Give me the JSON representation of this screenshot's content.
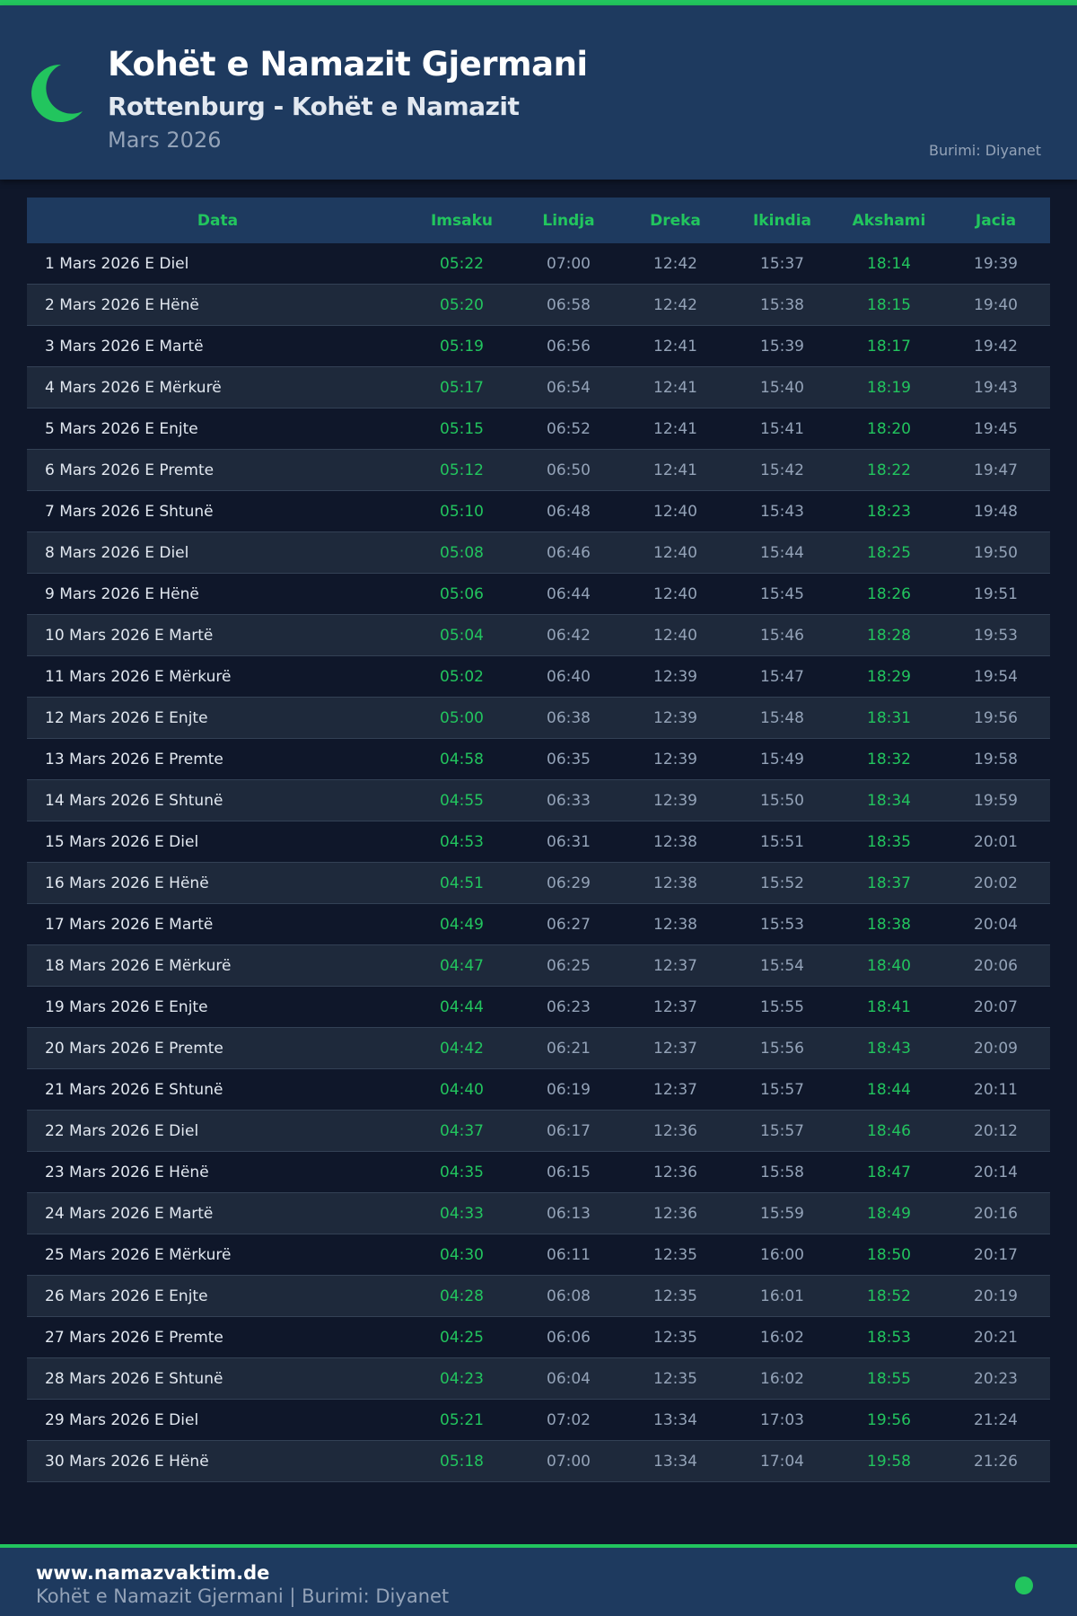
{
  "header": {
    "title": "Kohët e Namazit Gjermani",
    "subtitle": "Rottenburg - Kohët e Namazit",
    "month": "Mars 2026",
    "source": "Burimi: Diyanet",
    "icon": "crescent-moon-icon"
  },
  "colors": {
    "accent": "#22c55e",
    "header_bg": "#1e3a5f",
    "page_bg": "#0f172a",
    "row_alt": "#1e293b"
  },
  "table": {
    "columns": [
      "Data",
      "Imsaku",
      "Lindja",
      "Dreka",
      "Ikindia",
      "Akshami",
      "Jacia"
    ],
    "rows": [
      [
        "1 Mars 2026 E Diel",
        "05:22",
        "07:00",
        "12:42",
        "15:37",
        "18:14",
        "19:39"
      ],
      [
        "2 Mars 2026 E Hënë",
        "05:20",
        "06:58",
        "12:42",
        "15:38",
        "18:15",
        "19:40"
      ],
      [
        "3 Mars 2026 E Martë",
        "05:19",
        "06:56",
        "12:41",
        "15:39",
        "18:17",
        "19:42"
      ],
      [
        "4 Mars 2026 E Mërkurë",
        "05:17",
        "06:54",
        "12:41",
        "15:40",
        "18:19",
        "19:43"
      ],
      [
        "5 Mars 2026 E Enjte",
        "05:15",
        "06:52",
        "12:41",
        "15:41",
        "18:20",
        "19:45"
      ],
      [
        "6 Mars 2026 E Premte",
        "05:12",
        "06:50",
        "12:41",
        "15:42",
        "18:22",
        "19:47"
      ],
      [
        "7 Mars 2026 E Shtunë",
        "05:10",
        "06:48",
        "12:40",
        "15:43",
        "18:23",
        "19:48"
      ],
      [
        "8 Mars 2026 E Diel",
        "05:08",
        "06:46",
        "12:40",
        "15:44",
        "18:25",
        "19:50"
      ],
      [
        "9 Mars 2026 E Hënë",
        "05:06",
        "06:44",
        "12:40",
        "15:45",
        "18:26",
        "19:51"
      ],
      [
        "10 Mars 2026 E Martë",
        "05:04",
        "06:42",
        "12:40",
        "15:46",
        "18:28",
        "19:53"
      ],
      [
        "11 Mars 2026 E Mërkurë",
        "05:02",
        "06:40",
        "12:39",
        "15:47",
        "18:29",
        "19:54"
      ],
      [
        "12 Mars 2026 E Enjte",
        "05:00",
        "06:38",
        "12:39",
        "15:48",
        "18:31",
        "19:56"
      ],
      [
        "13 Mars 2026 E Premte",
        "04:58",
        "06:35",
        "12:39",
        "15:49",
        "18:32",
        "19:58"
      ],
      [
        "14 Mars 2026 E Shtunë",
        "04:55",
        "06:33",
        "12:39",
        "15:50",
        "18:34",
        "19:59"
      ],
      [
        "15 Mars 2026 E Diel",
        "04:53",
        "06:31",
        "12:38",
        "15:51",
        "18:35",
        "20:01"
      ],
      [
        "16 Mars 2026 E Hënë",
        "04:51",
        "06:29",
        "12:38",
        "15:52",
        "18:37",
        "20:02"
      ],
      [
        "17 Mars 2026 E Martë",
        "04:49",
        "06:27",
        "12:38",
        "15:53",
        "18:38",
        "20:04"
      ],
      [
        "18 Mars 2026 E Mërkurë",
        "04:47",
        "06:25",
        "12:37",
        "15:54",
        "18:40",
        "20:06"
      ],
      [
        "19 Mars 2026 E Enjte",
        "04:44",
        "06:23",
        "12:37",
        "15:55",
        "18:41",
        "20:07"
      ],
      [
        "20 Mars 2026 E Premte",
        "04:42",
        "06:21",
        "12:37",
        "15:56",
        "18:43",
        "20:09"
      ],
      [
        "21 Mars 2026 E Shtunë",
        "04:40",
        "06:19",
        "12:37",
        "15:57",
        "18:44",
        "20:11"
      ],
      [
        "22 Mars 2026 E Diel",
        "04:37",
        "06:17",
        "12:36",
        "15:57",
        "18:46",
        "20:12"
      ],
      [
        "23 Mars 2026 E Hënë",
        "04:35",
        "06:15",
        "12:36",
        "15:58",
        "18:47",
        "20:14"
      ],
      [
        "24 Mars 2026 E Martë",
        "04:33",
        "06:13",
        "12:36",
        "15:59",
        "18:49",
        "20:16"
      ],
      [
        "25 Mars 2026 E Mërkurë",
        "04:30",
        "06:11",
        "12:35",
        "16:00",
        "18:50",
        "20:17"
      ],
      [
        "26 Mars 2026 E Enjte",
        "04:28",
        "06:08",
        "12:35",
        "16:01",
        "18:52",
        "20:19"
      ],
      [
        "27 Mars 2026 E Premte",
        "04:25",
        "06:06",
        "12:35",
        "16:02",
        "18:53",
        "20:21"
      ],
      [
        "28 Mars 2026 E Shtunë",
        "04:23",
        "06:04",
        "12:35",
        "16:02",
        "18:55",
        "20:23"
      ],
      [
        "29 Mars 2026 E Diel",
        "05:21",
        "07:02",
        "13:34",
        "17:03",
        "19:56",
        "21:24"
      ],
      [
        "30 Mars 2026 E Hënë",
        "05:18",
        "07:00",
        "13:34",
        "17:04",
        "19:58",
        "21:26"
      ]
    ]
  },
  "footer": {
    "site": "www.namazvaktim.de",
    "text": "Kohët e Namazit Gjermani | Burimi: Diyanet"
  }
}
